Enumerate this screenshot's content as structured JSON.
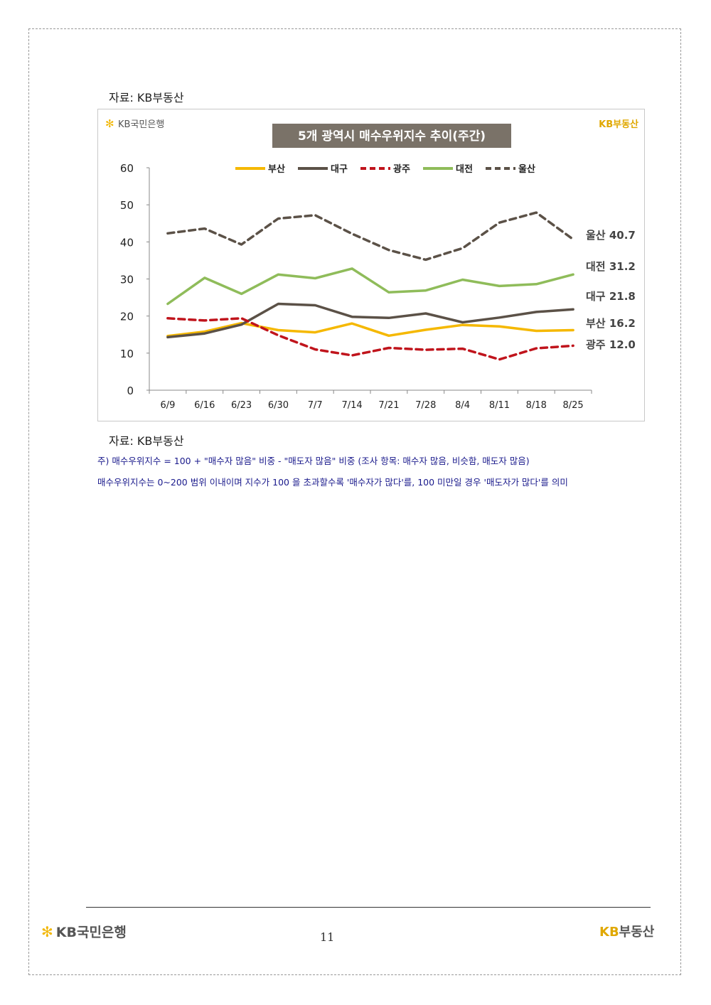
{
  "source_top": "자료: KB부동산",
  "source_bottom": "자료: KB부동산",
  "notes": {
    "line1": "주) 매수우위지수 = 100 + \"매수자 많음\" 비중 - \"매도자 많음\" 비중 (조사 항목: 매수자 많음, 비슷함, 매도자 많음)",
    "line2": "매수우위지수는 0~200 범위 이내이며 지수가 100 을 초과할수록 '매수자가 많다'를, 100 미만일 경우 '매도자가 많다'를 의미"
  },
  "chart_logo_left": "KB국민은행",
  "chart_logo_right": "KB부동산",
  "footer": {
    "logo_left": "KB국민은행",
    "logo_right_kb": "KB",
    "logo_right_text": "부동산",
    "page_number": "11"
  },
  "colors": {
    "busan": "#f5b800",
    "daegu": "#5b5147",
    "gwangju": "#c0141c",
    "daejeon": "#8fbc5a",
    "ulsan": "#5b5147",
    "title_bg": "#7a7268",
    "logo_yellow": "#e0a800"
  },
  "chart_data": {
    "type": "line",
    "title": "5개 광역시 매수우위지수 추이(주간)",
    "xlabel": "",
    "ylabel": "",
    "ylim": [
      0,
      60
    ],
    "yticks": [
      "0",
      "10",
      "20",
      "30",
      "40",
      "50",
      "60"
    ],
    "categories": [
      "6/9",
      "6/16",
      "6/23",
      "6/30",
      "7/7",
      "7/14",
      "7/21",
      "7/28",
      "8/4",
      "8/11",
      "8/18",
      "8/25"
    ],
    "legend_position": "top",
    "grid": false,
    "series": [
      {
        "name": "부산",
        "style": "solid",
        "values": [
          14.6,
          15.8,
          18.1,
          16.2,
          15.6,
          18.0,
          14.7,
          16.3,
          17.6,
          17.2,
          16.0,
          16.2
        ],
        "end_label": "부산 16.2"
      },
      {
        "name": "대구",
        "style": "solid",
        "values": [
          14.3,
          15.3,
          17.7,
          23.3,
          22.9,
          19.8,
          19.5,
          20.7,
          18.3,
          19.6,
          21.1,
          21.8
        ],
        "end_label": "대구 21.8"
      },
      {
        "name": "광주",
        "style": "dashed",
        "values": [
          19.4,
          18.8,
          19.4,
          14.8,
          11.0,
          9.4,
          11.4,
          10.9,
          11.2,
          8.3,
          11.3,
          12.0
        ],
        "end_label": "광주 12.0"
      },
      {
        "name": "대전",
        "style": "solid",
        "values": [
          23.3,
          30.3,
          26.0,
          31.2,
          30.2,
          32.8,
          26.4,
          26.9,
          29.8,
          28.1,
          28.6,
          31.2
        ],
        "end_label": "대전 31.2"
      },
      {
        "name": "울산",
        "style": "dashed",
        "values": [
          42.3,
          43.6,
          39.3,
          46.3,
          47.2,
          42.2,
          37.8,
          35.2,
          38.3,
          45.2,
          47.9,
          40.7
        ],
        "end_label": "울산 40.7"
      }
    ]
  }
}
